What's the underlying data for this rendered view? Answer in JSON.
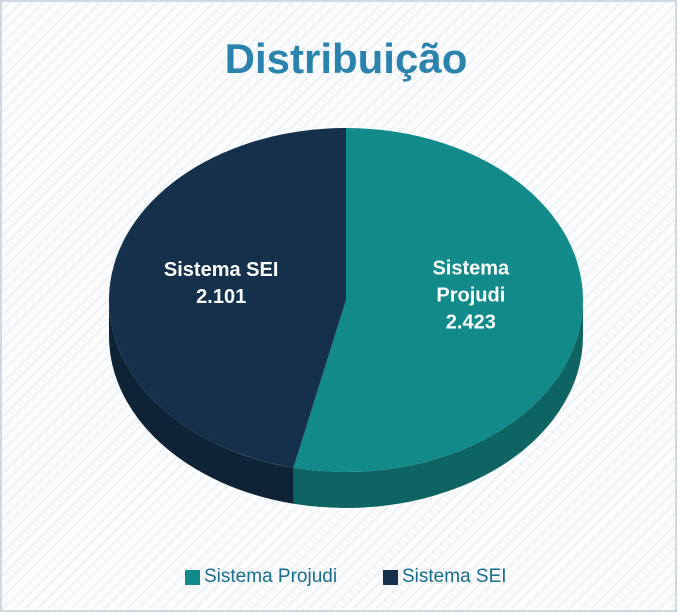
{
  "chart_data": {
    "type": "pie",
    "title": "Distribuição",
    "categories": [
      "Sistema Projudi",
      "Sistema SEI"
    ],
    "values": [
      2423,
      2101
    ],
    "value_labels": [
      "2.423",
      "2.101"
    ],
    "colors": [
      "#138a8a",
      "#14304a"
    ],
    "legend": "bottom"
  }
}
